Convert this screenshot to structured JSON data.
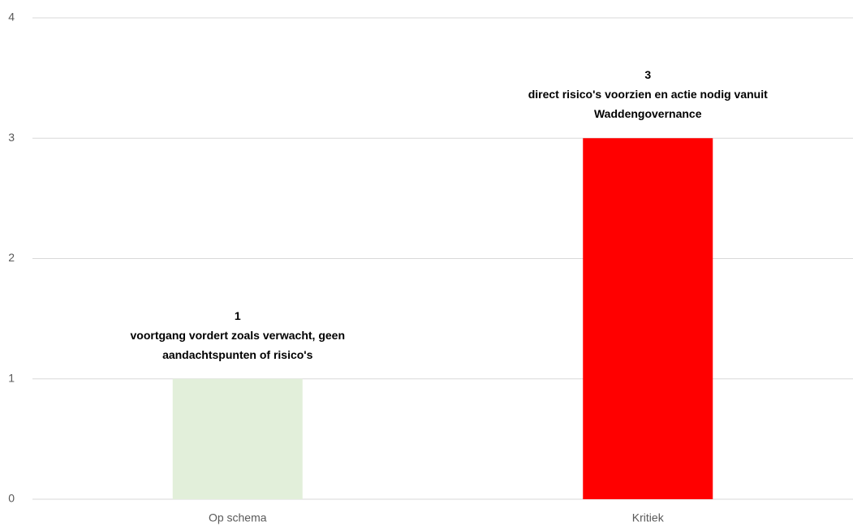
{
  "chart_data": {
    "type": "bar",
    "categories": [
      "Op schema",
      "Kritiek"
    ],
    "values": [
      1,
      3
    ],
    "colors": [
      "#e2efda",
      "#ff0000"
    ],
    "descriptions": [
      "voortgang vordert zoals verwacht, geen aandachtspunten of risico's",
      "direct risico's voorzien en actie nodig vanuit Waddengovernance"
    ],
    "ylim": [
      0,
      4
    ],
    "yticks": [
      0,
      1,
      2,
      3,
      4
    ],
    "grid": true
  }
}
